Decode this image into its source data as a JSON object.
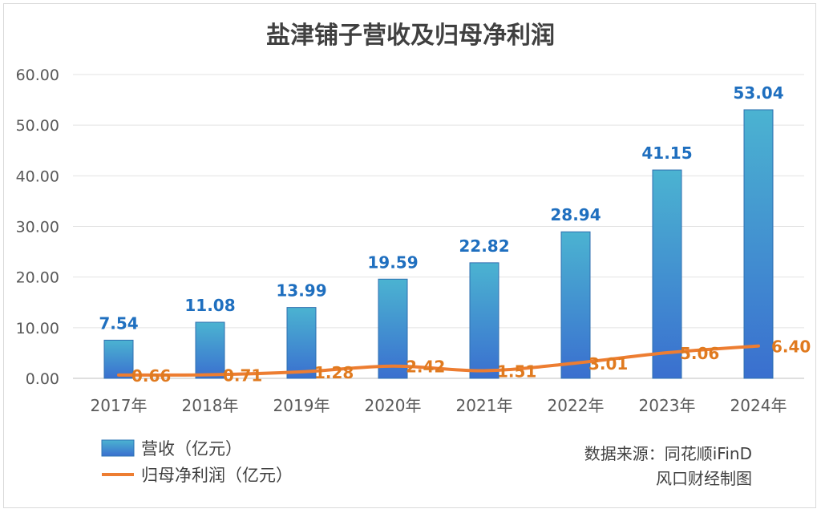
{
  "chart_data": {
    "type": "bar",
    "title": "盐津铺子营收及归母净利润",
    "categories": [
      "2017年",
      "2018年",
      "2019年",
      "2020年",
      "2021年",
      "2022年",
      "2023年",
      "2024年"
    ],
    "ylim": [
      0,
      60
    ],
    "yticks": [
      "0.00",
      "10.00",
      "20.00",
      "30.00",
      "40.00",
      "50.00",
      "60.00"
    ],
    "grid": true,
    "legend_position": "bottom-left",
    "series": [
      {
        "name": "营收（亿元）",
        "type": "bar",
        "color": "#3f8fcc",
        "values": [
          7.54,
          11.08,
          13.99,
          19.59,
          22.82,
          28.94,
          41.15,
          53.04
        ],
        "labels": [
          "7.54",
          "11.08",
          "13.99",
          "19.59",
          "22.82",
          "28.94",
          "41.15",
          "53.04"
        ]
      },
      {
        "name": "归母净利润（亿元）",
        "type": "line",
        "color": "#ed7d31",
        "values": [
          0.66,
          0.71,
          1.28,
          2.42,
          1.51,
          3.01,
          5.06,
          6.4
        ],
        "labels": [
          "0.66",
          "0.71",
          "1.28",
          "2.42",
          "1.51",
          "3.01",
          "5.06",
          "6.40"
        ]
      }
    ]
  },
  "source": {
    "line1": "数据来源：同花顺iFinD",
    "line2": "风口财经制图"
  }
}
